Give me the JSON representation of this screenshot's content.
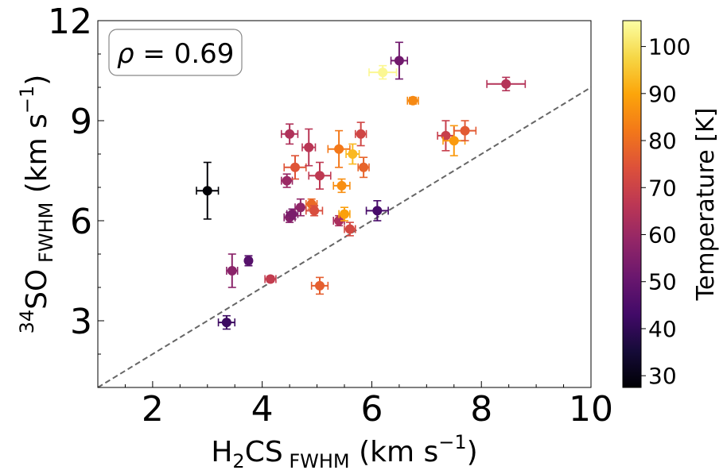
{
  "chart_data": {
    "type": "scatter",
    "annotation": {
      "symbol": "ρ",
      "eq": " = ",
      "value": "0.69"
    },
    "xlabel": {
      "main": "H",
      "sub1": "2",
      "mid": "CS",
      "sub2": "FWHM",
      "unit_a": " (km s",
      "sup": "−1",
      "unit_b": ")"
    },
    "ylabel": {
      "sup1": "34",
      "main": "SO",
      "sub": "FWHM",
      "unit_a": " (km s",
      "sup2": "−1",
      "unit_b": ")"
    },
    "xlim": [
      1,
      10
    ],
    "ylim": [
      1,
      12
    ],
    "xticks": [
      2,
      4,
      6,
      8,
      10
    ],
    "yticks": [
      3,
      6,
      9,
      12
    ],
    "xticklabels": [
      "2",
      "4",
      "6",
      "8",
      "10"
    ],
    "yticklabels": [
      "3",
      "6",
      "9",
      "12"
    ],
    "reference_line": {
      "slope": 1,
      "intercept": 0,
      "style": "dashed",
      "color": "#666666"
    },
    "colorbar": {
      "label": "Temperature [K]",
      "min": 27.5,
      "max": 105.5,
      "ticks": [
        30,
        40,
        50,
        60,
        70,
        80,
        90,
        100
      ],
      "ticklabels": [
        "30",
        "40",
        "50",
        "60",
        "70",
        "80",
        "90",
        "100"
      ],
      "colormap": "inferno"
    },
    "points": [
      {
        "x": 3.0,
        "y": 6.9,
        "xerr": 0.2,
        "yerr": 0.85,
        "t": 28
      },
      {
        "x": 3.35,
        "y": 2.95,
        "xerr": 0.15,
        "yerr": 0.2,
        "t": 42
      },
      {
        "x": 3.45,
        "y": 4.5,
        "xerr": 0.1,
        "yerr": 0.5,
        "t": 57
      },
      {
        "x": 3.75,
        "y": 4.8,
        "xerr": 0.05,
        "yerr": 0.15,
        "t": 47
      },
      {
        "x": 4.15,
        "y": 4.25,
        "xerr": 0.1,
        "yerr": 0.08,
        "t": 68
      },
      {
        "x": 4.45,
        "y": 7.2,
        "xerr": 0.1,
        "yerr": 0.2,
        "t": 60
      },
      {
        "x": 4.5,
        "y": 8.6,
        "xerr": 0.15,
        "yerr": 0.3,
        "t": 64
      },
      {
        "x": 4.5,
        "y": 6.1,
        "xerr": 0.1,
        "yerr": 0.15,
        "t": 56
      },
      {
        "x": 4.55,
        "y": 6.2,
        "xerr": 0.1,
        "yerr": 0.15,
        "t": 54
      },
      {
        "x": 4.6,
        "y": 7.6,
        "xerr": 0.2,
        "yerr": 0.35,
        "t": 75
      },
      {
        "x": 4.7,
        "y": 6.4,
        "xerr": 0.1,
        "yerr": 0.25,
        "t": 58
      },
      {
        "x": 4.85,
        "y": 8.2,
        "xerr": 0.12,
        "yerr": 0.55,
        "t": 66
      },
      {
        "x": 4.9,
        "y": 6.5,
        "xerr": 0.1,
        "yerr": 0.15,
        "t": 79
      },
      {
        "x": 4.95,
        "y": 6.3,
        "xerr": 0.15,
        "yerr": 0.15,
        "t": 73
      },
      {
        "x": 5.05,
        "y": 7.35,
        "xerr": 0.2,
        "yerr": 0.4,
        "t": 67
      },
      {
        "x": 5.05,
        "y": 4.05,
        "xerr": 0.15,
        "yerr": 0.25,
        "t": 77
      },
      {
        "x": 5.4,
        "y": 6.0,
        "xerr": 0.1,
        "yerr": 0.15,
        "t": 63
      },
      {
        "x": 5.4,
        "y": 8.15,
        "xerr": 0.2,
        "yerr": 0.55,
        "t": 82
      },
      {
        "x": 5.45,
        "y": 7.05,
        "xerr": 0.15,
        "yerr": 0.2,
        "t": 86
      },
      {
        "x": 5.5,
        "y": 6.2,
        "xerr": 0.1,
        "yerr": 0.2,
        "t": 89
      },
      {
        "x": 5.6,
        "y": 5.75,
        "xerr": 0.1,
        "yerr": 0.2,
        "t": 72
      },
      {
        "x": 5.65,
        "y": 8.0,
        "xerr": 0.12,
        "yerr": 0.3,
        "t": 93
      },
      {
        "x": 5.8,
        "y": 8.6,
        "xerr": 0.1,
        "yerr": 0.35,
        "t": 71
      },
      {
        "x": 5.85,
        "y": 7.6,
        "xerr": 0.1,
        "yerr": 0.3,
        "t": 78
      },
      {
        "x": 6.1,
        "y": 6.3,
        "xerr": 0.2,
        "yerr": 0.3,
        "t": 44
      },
      {
        "x": 6.2,
        "y": 10.45,
        "xerr": 0.25,
        "yerr": 0.2,
        "t": 104
      },
      {
        "x": 6.5,
        "y": 10.8,
        "xerr": 0.15,
        "yerr": 0.55,
        "t": 52
      },
      {
        "x": 6.75,
        "y": 9.6,
        "xerr": 0.1,
        "yerr": 0.1,
        "t": 85
      },
      {
        "x": 7.35,
        "y": 8.55,
        "xerr": 0.15,
        "yerr": 0.45,
        "t": 69
      },
      {
        "x": 7.5,
        "y": 8.4,
        "xerr": 0.2,
        "yerr": 0.45,
        "t": 88
      },
      {
        "x": 7.7,
        "y": 8.7,
        "xerr": 0.2,
        "yerr": 0.3,
        "t": 76
      },
      {
        "x": 8.45,
        "y": 10.1,
        "xerr": 0.35,
        "yerr": 0.2,
        "t": 65
      }
    ]
  }
}
